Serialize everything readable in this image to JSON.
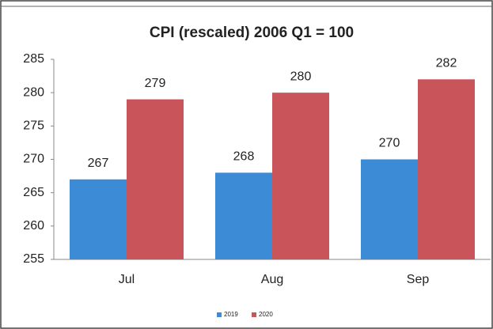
{
  "chart_data": {
    "type": "bar",
    "title": "CPI (rescaled) 2006 Q1 = 100",
    "categories": [
      "Jul",
      "Aug",
      "Sep"
    ],
    "series": [
      {
        "name": "2019",
        "color": "#3b8bd6",
        "values": [
          267,
          268,
          270
        ]
      },
      {
        "name": "2020",
        "color": "#c9545a",
        "values": [
          279,
          280,
          282
        ]
      }
    ],
    "ylim": [
      255,
      285
    ],
    "yticks": [
      255,
      260,
      265,
      270,
      275,
      280,
      285
    ],
    "grid": false,
    "legend": "bottom"
  }
}
